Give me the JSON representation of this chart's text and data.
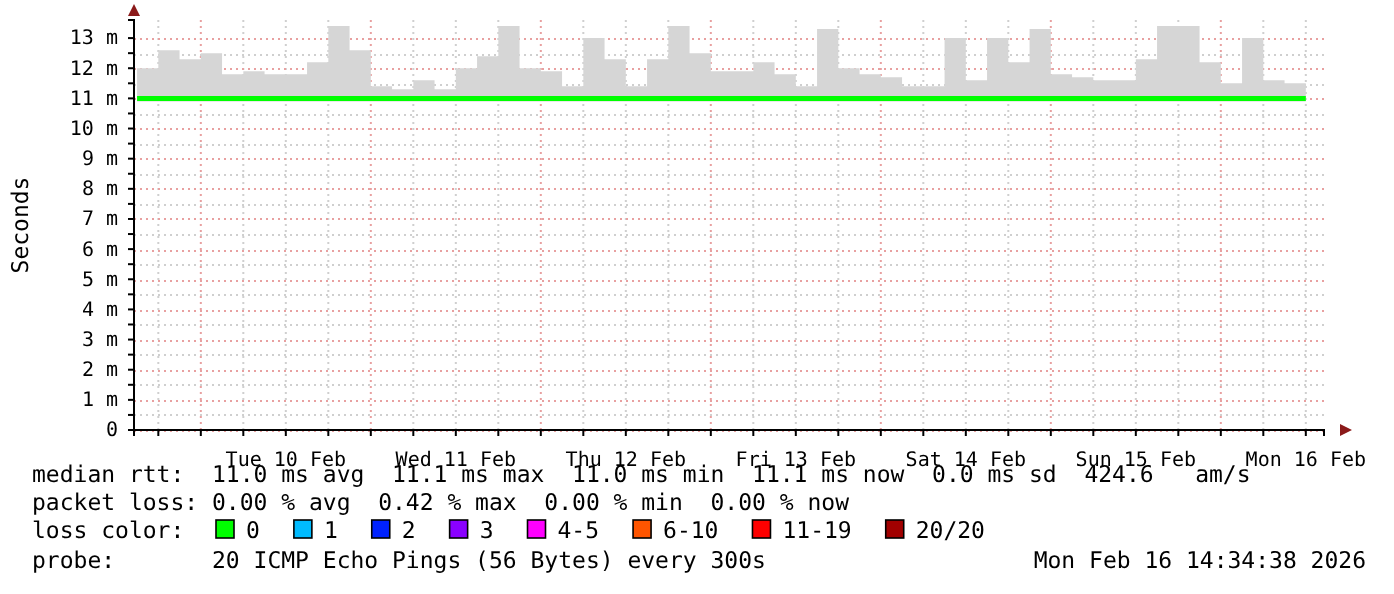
{
  "chart_data": {
    "type": "line",
    "ylabel": "Seconds",
    "legend_title": "loss color:",
    "legend": "bottom",
    "grid": true,
    "line_style": "solid",
    "marker": "none",
    "xlim": [
      "2026-02-09T14:34",
      "2026-02-16T14:34"
    ],
    "xticks": [
      {
        "value": "2026-02-09T18:00",
        "label": null
      },
      {
        "value": "2026-02-10T00:00",
        "label": null
      },
      {
        "value": "2026-02-10T06:00",
        "label": null
      },
      {
        "value": "2026-02-10T12:00",
        "label": "Tue 10 Feb"
      },
      {
        "value": "2026-02-10T18:00",
        "label": null
      },
      {
        "value": "2026-02-11T00:00",
        "label": null
      },
      {
        "value": "2026-02-11T06:00",
        "label": null
      },
      {
        "value": "2026-02-11T12:00",
        "label": "Wed 11 Feb"
      },
      {
        "value": "2026-02-11T18:00",
        "label": null
      },
      {
        "value": "2026-02-12T00:00",
        "label": null
      },
      {
        "value": "2026-02-12T06:00",
        "label": null
      },
      {
        "value": "2026-02-12T12:00",
        "label": "Thu 12 Feb"
      },
      {
        "value": "2026-02-12T18:00",
        "label": null
      },
      {
        "value": "2026-02-13T00:00",
        "label": null
      },
      {
        "value": "2026-02-13T06:00",
        "label": null
      },
      {
        "value": "2026-02-13T12:00",
        "label": "Fri 13 Feb"
      },
      {
        "value": "2026-02-13T18:00",
        "label": null
      },
      {
        "value": "2026-02-14T00:00",
        "label": null
      },
      {
        "value": "2026-02-14T06:00",
        "label": null
      },
      {
        "value": "2026-02-14T12:00",
        "label": "Sat 14 Feb"
      },
      {
        "value": "2026-02-14T18:00",
        "label": null
      },
      {
        "value": "2026-02-15T00:00",
        "label": null
      },
      {
        "value": "2026-02-15T06:00",
        "label": null
      },
      {
        "value": "2026-02-15T12:00",
        "label": "Sun 15 Feb"
      },
      {
        "value": "2026-02-15T18:00",
        "label": null
      },
      {
        "value": "2026-02-16T00:00",
        "label": null
      },
      {
        "value": "2026-02-16T06:00",
        "label": null
      },
      {
        "value": "2026-02-16T12:00",
        "label": "Mon 16 Feb"
      }
    ],
    "ylim": [
      0,
      13.6
    ],
    "yticks": [
      0,
      {
        "value": 0.5,
        "label": null
      },
      {
        "value": 1,
        "label": "1 m"
      },
      {
        "value": 1.5,
        "label": null
      },
      {
        "value": 2,
        "label": "2 m"
      },
      {
        "value": 2.5,
        "label": null
      },
      {
        "value": 3,
        "label": "3 m"
      },
      {
        "value": 3.5,
        "label": null
      },
      {
        "value": 4,
        "label": "4 m"
      },
      {
        "value": 4.5,
        "label": null
      },
      {
        "value": 5,
        "label": "5 m"
      },
      {
        "value": 5.5,
        "label": null
      },
      {
        "value": 6,
        "label": "6 m"
      },
      {
        "value": 6.5,
        "label": null
      },
      {
        "value": 7,
        "label": "7 m"
      },
      {
        "value": 7.5,
        "label": null
      },
      {
        "value": 8,
        "label": "8 m"
      },
      {
        "value": 8.5,
        "label": null
      },
      {
        "value": 9,
        "label": "9 m"
      },
      {
        "value": 9.5,
        "label": null
      },
      {
        "value": 10,
        "label": "10 m"
      },
      {
        "value": 10.5,
        "label": null
      },
      {
        "value": 11,
        "label": "11 m"
      },
      {
        "value": 11.5,
        "label": null
      },
      {
        "value": 12,
        "label": "12 m"
      },
      {
        "value": 12.5,
        "label": null
      },
      {
        "value": 13,
        "label": "13 m"
      }
    ],
    "x": [
      "2026-02-09T15:00",
      "2026-02-09T18:00",
      "2026-02-09T21:00",
      "2026-02-10T00:00",
      "2026-02-10T03:00",
      "2026-02-10T06:00",
      "2026-02-10T09:00",
      "2026-02-10T12:00",
      "2026-02-10T15:00",
      "2026-02-10T18:00",
      "2026-02-10T21:00",
      "2026-02-11T00:00",
      "2026-02-11T03:00",
      "2026-02-11T06:00",
      "2026-02-11T09:00",
      "2026-02-11T12:00",
      "2026-02-11T15:00",
      "2026-02-11T18:00",
      "2026-02-11T21:00",
      "2026-02-12T00:00",
      "2026-02-12T03:00",
      "2026-02-12T06:00",
      "2026-02-12T09:00",
      "2026-02-12T12:00",
      "2026-02-12T15:00",
      "2026-02-12T18:00",
      "2026-02-12T21:00",
      "2026-02-13T00:00",
      "2026-02-13T03:00",
      "2026-02-13T06:00",
      "2026-02-13T09:00",
      "2026-02-13T12:00",
      "2026-02-13T15:00",
      "2026-02-13T18:00",
      "2026-02-13T21:00",
      "2026-02-14T00:00",
      "2026-02-14T03:00",
      "2026-02-14T06:00",
      "2026-02-14T09:00",
      "2026-02-14T12:00",
      "2026-02-14T15:00",
      "2026-02-14T18:00",
      "2026-02-14T21:00",
      "2026-02-15T00:00",
      "2026-02-15T03:00",
      "2026-02-15T06:00",
      "2026-02-15T09:00",
      "2026-02-15T12:00",
      "2026-02-15T15:00",
      "2026-02-15T18:00",
      "2026-02-15T21:00",
      "2026-02-16T00:00",
      "2026-02-16T03:00",
      "2026-02-16T06:00",
      "2026-02-16T09:00",
      "2026-02-16T12:00"
    ],
    "series": [
      {
        "name": "0",
        "color": "#00ff00",
        "values": [
          11,
          11,
          11,
          11,
          11,
          11,
          11,
          11,
          11,
          11,
          11,
          11,
          11,
          11,
          11,
          11,
          11,
          11,
          11,
          11,
          11,
          11,
          11,
          11,
          11,
          11,
          11,
          11,
          11,
          11,
          11,
          11,
          11,
          11,
          11,
          11,
          11,
          11,
          11,
          11,
          11,
          11,
          11,
          11,
          11,
          11,
          11,
          11,
          11,
          11,
          11,
          11,
          11,
          11,
          11,
          11
        ],
        "lower": [
          10.9,
          10.9,
          10.9,
          10.9,
          10.9,
          10.9,
          10.9,
          10.9,
          10.9,
          10.9,
          10.9,
          10.9,
          10.9,
          10.9,
          10.9,
          10.9,
          10.9,
          10.9,
          10.9,
          10.9,
          10.9,
          10.9,
          10.9,
          10.9,
          10.9,
          10.9,
          10.9,
          10.9,
          10.9,
          10.9,
          10.9,
          10.9,
          10.9,
          10.9,
          10.9,
          10.9,
          10.9,
          10.9,
          10.9,
          10.9,
          10.9,
          10.9,
          10.9,
          10.9,
          10.9,
          10.9,
          10.9,
          10.9,
          10.9,
          10.9,
          10.9,
          10.9,
          10.9,
          10.9,
          10.9,
          10.9
        ],
        "upper": [
          12,
          12.6,
          12.3,
          12.5,
          11.8,
          11.9,
          11.8,
          11.8,
          12.2,
          13.4,
          12.6,
          11.4,
          11.3,
          11.6,
          11.3,
          12,
          12.4,
          13.4,
          12,
          11.9,
          11.4,
          13,
          12.3,
          11.4,
          12.3,
          13.4,
          12.5,
          11.9,
          11.9,
          12.2,
          11.8,
          11.4,
          13.3,
          12,
          11.8,
          11.7,
          11.4,
          11.4,
          13,
          11.6,
          13,
          12.2,
          13.3,
          11.8,
          11.7,
          11.6,
          11.6,
          12.3,
          13.4,
          13.4,
          12.2,
          11.5,
          13,
          11.6,
          11.5,
          13.4
        ]
      },
      {
        "name": "1",
        "color": "#00bbff",
        "values": [
          null,
          null,
          null,
          null,
          null,
          null,
          null,
          null,
          null,
          null,
          null,
          null,
          null,
          null,
          null,
          null,
          null,
          null,
          null,
          null,
          null,
          null,
          null,
          null,
          null,
          null,
          null,
          null,
          null,
          null,
          null,
          null,
          null,
          null,
          null,
          null,
          null,
          null,
          null,
          null,
          null,
          null,
          null,
          null,
          null,
          null,
          null,
          null,
          null,
          null,
          null,
          null,
          null,
          null,
          null,
          null
        ]
      },
      {
        "name": "2",
        "color": "#0022ff",
        "values": [
          null,
          null,
          null,
          null,
          null,
          null,
          null,
          null,
          null,
          null,
          null,
          null,
          null,
          null,
          null,
          null,
          null,
          null,
          null,
          null,
          null,
          null,
          null,
          null,
          null,
          null,
          null,
          null,
          null,
          null,
          null,
          null,
          null,
          null,
          null,
          null,
          null,
          null,
          null,
          null,
          null,
          null,
          null,
          null,
          null,
          null,
          null,
          null,
          null,
          null,
          null,
          null,
          null,
          null,
          null,
          null
        ]
      },
      {
        "name": "3",
        "color": "#8a00ff",
        "values": [
          null,
          null,
          null,
          null,
          null,
          null,
          null,
          null,
          null,
          null,
          null,
          null,
          null,
          null,
          null,
          null,
          null,
          null,
          null,
          null,
          null,
          null,
          null,
          null,
          null,
          null,
          null,
          null,
          null,
          null,
          null,
          null,
          null,
          null,
          null,
          null,
          null,
          null,
          null,
          null,
          null,
          null,
          null,
          null,
          null,
          null,
          null,
          null,
          null,
          null,
          null,
          null,
          null,
          null,
          null,
          null
        ]
      },
      {
        "name": "4-5",
        "color": "#ff00ff",
        "values": [
          null,
          null,
          null,
          null,
          null,
          null,
          null,
          null,
          null,
          null,
          null,
          null,
          null,
          null,
          null,
          null,
          null,
          null,
          null,
          null,
          null,
          null,
          null,
          null,
          null,
          null,
          null,
          null,
          null,
          null,
          null,
          null,
          null,
          null,
          null,
          null,
          null,
          null,
          null,
          null,
          null,
          null,
          null,
          null,
          null,
          null,
          null,
          null,
          null,
          null,
          null,
          null,
          null,
          null,
          null,
          null
        ]
      },
      {
        "name": "6-10",
        "color": "#ff5500",
        "values": [
          null,
          null,
          null,
          null,
          null,
          null,
          null,
          null,
          null,
          null,
          null,
          null,
          null,
          null,
          null,
          null,
          null,
          null,
          null,
          null,
          null,
          null,
          null,
          null,
          null,
          null,
          null,
          null,
          null,
          null,
          null,
          null,
          null,
          null,
          null,
          null,
          null,
          null,
          null,
          null,
          null,
          null,
          null,
          null,
          null,
          null,
          null,
          null,
          null,
          null,
          null,
          null,
          null,
          null,
          null,
          null
        ]
      },
      {
        "name": "11-19",
        "color": "#ff0000",
        "values": [
          null,
          null,
          null,
          null,
          null,
          null,
          null,
          null,
          null,
          null,
          null,
          null,
          null,
          null,
          null,
          null,
          null,
          null,
          null,
          null,
          null,
          null,
          null,
          null,
          null,
          null,
          null,
          null,
          null,
          null,
          null,
          null,
          null,
          null,
          null,
          null,
          null,
          null,
          null,
          null,
          null,
          null,
          null,
          null,
          null,
          null,
          null,
          null,
          null,
          null,
          null,
          null,
          null,
          null,
          null,
          null
        ]
      },
      {
        "name": "20/20",
        "color": "#a10000",
        "values": [
          null,
          null,
          null,
          null,
          null,
          null,
          null,
          null,
          null,
          null,
          null,
          null,
          null,
          null,
          null,
          null,
          null,
          null,
          null,
          null,
          null,
          null,
          null,
          null,
          null,
          null,
          null,
          null,
          null,
          null,
          null,
          null,
          null,
          null,
          null,
          null,
          null,
          null,
          null,
          null,
          null,
          null,
          null,
          null,
          null,
          null,
          null,
          null,
          null,
          null,
          null,
          null,
          null,
          null,
          null,
          null
        ]
      }
    ],
    "annotations": [
      "median rtt:  11.0 ms avg  11.1 ms max  11.0 ms min  11.1 ms now  0.0 ms sd  424.6   am/s",
      "packet loss: 0.00 % avg  0.42 % max  0.00 % min  0.00 % now",
      "probe:       20 ICMP Echo Pings (56 Bytes) every 300s",
      "Mon Feb 16 14:34:38 2026"
    ]
  }
}
